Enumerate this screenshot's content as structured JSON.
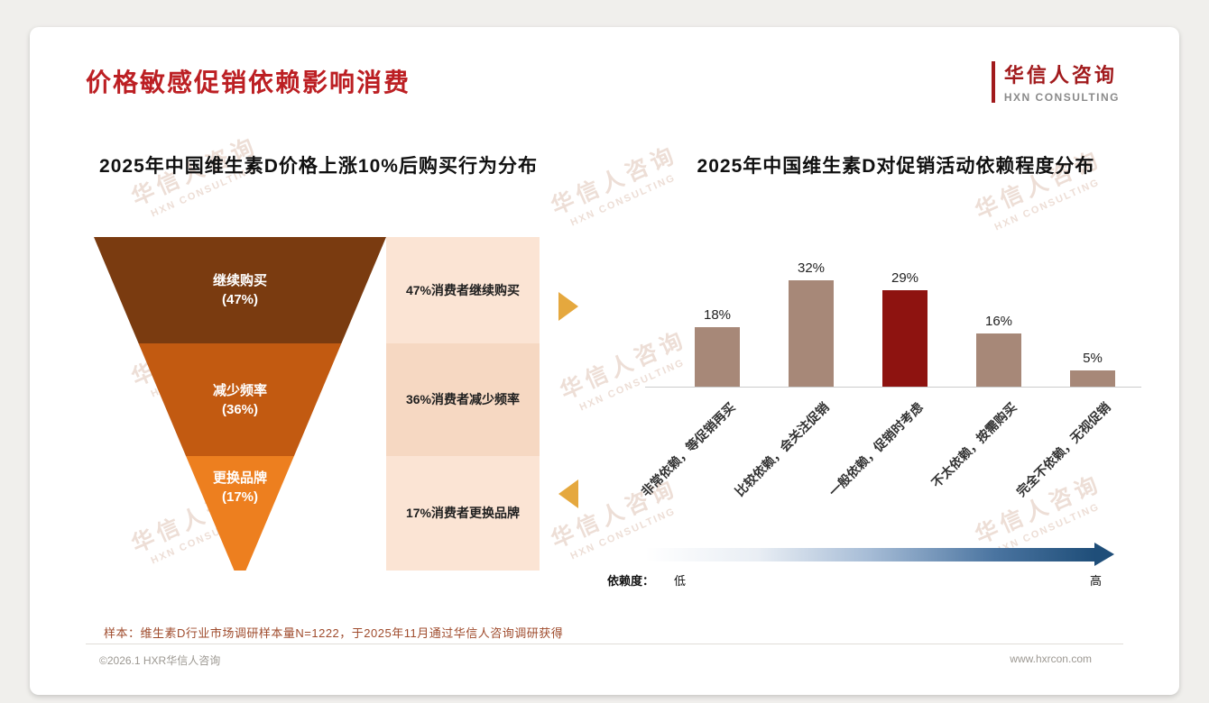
{
  "page": {
    "title": "价格敏感促销依赖影响消费",
    "logo": {
      "cn": "华信人咨询",
      "en": "HXN CONSULTING"
    },
    "watermark": {
      "line1": "华信人咨询",
      "line2": "HXN CONSULTING"
    },
    "note": "样本：维生素D行业市场调研样本量N=1222，于2025年11月通过华信人咨询调研获得",
    "footer": {
      "left": "©2026.1 HXR华信人咨询",
      "right": "www.hxrcon.com"
    }
  },
  "colors": {
    "title_red": "#BC1F23",
    "logo_red": "#A11A1C",
    "note_red": "#9F4B2C",
    "annot_a": "#FBE4D4",
    "annot_b": "#F6D8C2",
    "gold": "#E5A83E",
    "navy": "#1F4E79"
  },
  "chart_data": [
    {
      "type": "funnel",
      "title": "2025年中国维生素D价格上涨10%后购买行为分布",
      "value_suffix": "%",
      "levels": [
        {
          "label": "继续购买",
          "pct": "(47%)",
          "value": 47,
          "color": "#7A3B10",
          "annotation": "47%消费者继续购买"
        },
        {
          "label": "减少频率",
          "pct": "(36%)",
          "value": 36,
          "color": "#C25A11",
          "annotation": "36%消费者减少频率"
        },
        {
          "label": "更换品牌",
          "pct": "(17%)",
          "value": 17,
          "color": "#ED7F1F",
          "annotation": "17%消费者更换品牌"
        }
      ]
    },
    {
      "type": "bar",
      "title": "2025年中国维生素D对促销活动依赖程度分布",
      "categories": [
        "非常依赖，等促销再买",
        "比较依赖，会关注促销",
        "一般依赖，促销时考虑",
        "不太依赖，按需购买",
        "完全不依赖，无视促销"
      ],
      "values": [
        18,
        32,
        29,
        16,
        5
      ],
      "value_labels": [
        "18%",
        "32%",
        "29%",
        "16%",
        "5%"
      ],
      "bar_colors": [
        "#A78878",
        "#A78878",
        "#8E1310",
        "#A78878",
        "#A78878"
      ],
      "highlight_index": 2,
      "ylim": [
        0,
        35
      ],
      "grid": false,
      "dependency_scale": {
        "label": "依赖度：",
        "low": "低",
        "high": "高"
      }
    }
  ]
}
